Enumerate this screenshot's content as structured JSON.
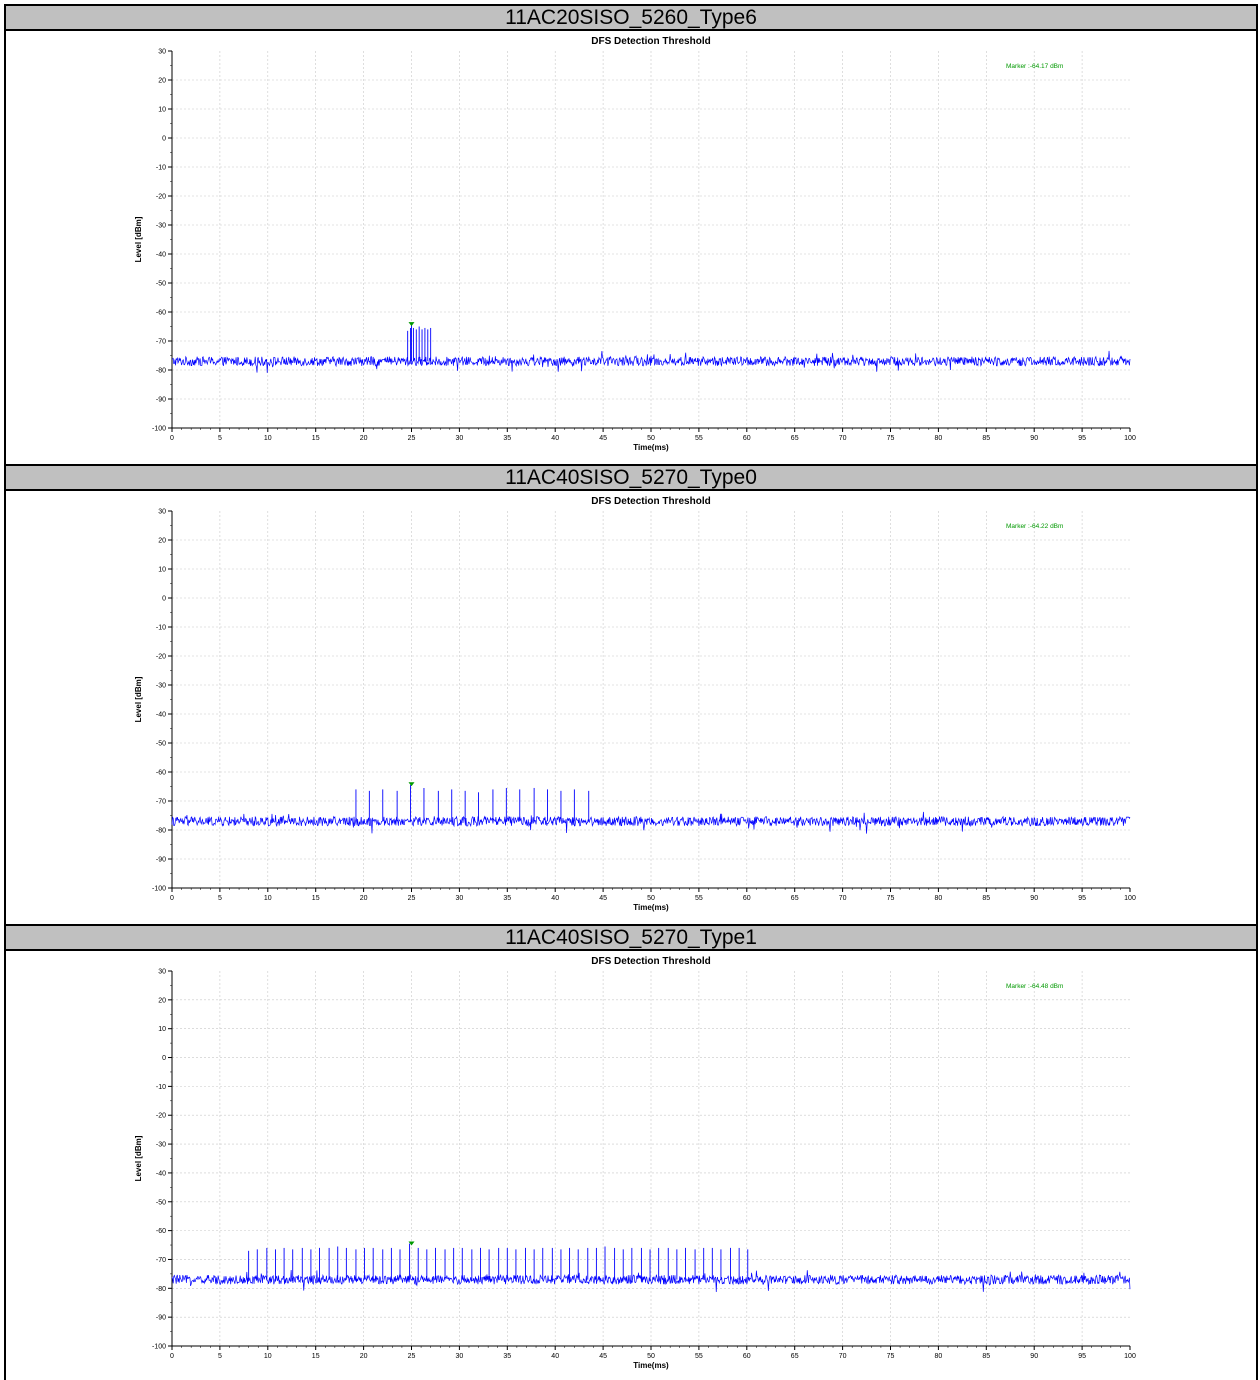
{
  "chart_data": [
    {
      "type": "line",
      "panel_title": "11AC20SISO_5260_Type6",
      "title": "DFS Detection Threshold",
      "xlabel": "Time(ms)",
      "ylabel": "Level [dBm]",
      "xlim": [
        0,
        100
      ],
      "ylim": [
        -100,
        30
      ],
      "xticks": [
        0,
        5,
        10,
        15,
        20,
        25,
        30,
        35,
        40,
        45,
        50,
        55,
        60,
        65,
        70,
        75,
        80,
        85,
        90,
        95,
        100
      ],
      "yticks": [
        30,
        20,
        10,
        0,
        -10,
        -20,
        -30,
        -40,
        -50,
        -60,
        -70,
        -80,
        -90,
        -100
      ],
      "grid": true,
      "series_color": "#0000ff",
      "marker_color": "#009900",
      "noise_floor_dbm": -77,
      "pulses": {
        "x": [
          24.6,
          24.9,
          25.0,
          25.2,
          25.5,
          25.8,
          26.1,
          26.4,
          26.7,
          27.0
        ],
        "y": [
          -66.5,
          -65.5,
          -64.5,
          -65.5,
          -66,
          -65,
          -66,
          -65.5,
          -66,
          -65.5
        ]
      },
      "marker": {
        "x": 25.0,
        "y": -64.17,
        "text": "Marker :-64.17 dBm"
      }
    },
    {
      "type": "line",
      "panel_title": "11AC40SISO_5270_Type0",
      "title": "DFS Detection Threshold",
      "xlabel": "Time(ms)",
      "ylabel": "Level [dBm]",
      "xlim": [
        0,
        100
      ],
      "ylim": [
        -100,
        30
      ],
      "xticks": [
        0,
        5,
        10,
        15,
        20,
        25,
        30,
        35,
        40,
        45,
        50,
        55,
        60,
        65,
        70,
        75,
        80,
        85,
        90,
        95,
        100
      ],
      "yticks": [
        30,
        20,
        10,
        0,
        -10,
        -20,
        -30,
        -40,
        -50,
        -60,
        -70,
        -80,
        -90,
        -100
      ],
      "grid": true,
      "series_color": "#0000ff",
      "marker_color": "#009900",
      "noise_floor_dbm": -77,
      "pulses": {
        "x": [
          19.2,
          20.6,
          22.0,
          23.5,
          24.9,
          26.3,
          27.8,
          29.2,
          30.6,
          32.0,
          33.5,
          34.9,
          36.3,
          37.8,
          39.2,
          40.6,
          42.0,
          43.5
        ],
        "y": [
          -66,
          -66.5,
          -66,
          -66.5,
          -64.5,
          -65.5,
          -66.5,
          -66,
          -66.5,
          -67,
          -66,
          -65.5,
          -66,
          -65.5,
          -66,
          -66.5,
          -66,
          -66.5
        ]
      },
      "marker": {
        "x": 25.0,
        "y": -64.22,
        "text": "Marker :-64.22 dBm"
      }
    },
    {
      "type": "line",
      "panel_title": "11AC40SISO_5270_Type1",
      "title": "DFS Detection Threshold",
      "xlabel": "Time(ms)",
      "ylabel": "Level [dBm]",
      "xlim": [
        0,
        100
      ],
      "ylim": [
        -100,
        30
      ],
      "xticks": [
        0,
        5,
        10,
        15,
        20,
        25,
        30,
        35,
        40,
        45,
        50,
        55,
        60,
        65,
        70,
        75,
        80,
        85,
        90,
        95,
        100
      ],
      "yticks": [
        30,
        20,
        10,
        0,
        -10,
        -20,
        -30,
        -40,
        -50,
        -60,
        -70,
        -80,
        -90,
        -100
      ],
      "grid": true,
      "series_color": "#0000ff",
      "marker_color": "#009900",
      "noise_floor_dbm": -77,
      "pulses": {
        "x": [
          8.0,
          8.9,
          9.9,
          10.8,
          11.7,
          12.6,
          13.6,
          14.5,
          15.4,
          16.4,
          17.3,
          18.2,
          19.2,
          20.1,
          21.0,
          22.0,
          22.9,
          23.8,
          24.8,
          25.7,
          26.6,
          27.5,
          28.5,
          29.4,
          30.3,
          31.3,
          32.2,
          33.1,
          34.1,
          35.0,
          35.9,
          36.9,
          37.8,
          38.7,
          39.7,
          40.6,
          41.5,
          42.4,
          43.4,
          44.3,
          45.2,
          46.2,
          47.1,
          48.0,
          49.0,
          49.9,
          50.8,
          51.8,
          52.7,
          53.6,
          54.6,
          55.5,
          56.4,
          57.3,
          58.3,
          59.2,
          60.1
        ],
        "y": [
          -67,
          -66.5,
          -66,
          -66.5,
          -66,
          -66.5,
          -66,
          -66.5,
          -66,
          -66,
          -65.5,
          -66,
          -66.5,
          -66,
          -66,
          -66.5,
          -66,
          -66.5,
          -64.5,
          -66,
          -66.5,
          -66,
          -66.5,
          -66,
          -66,
          -66.5,
          -66,
          -66.5,
          -66,
          -66,
          -66.5,
          -66,
          -66.5,
          -66,
          -66,
          -66.5,
          -66,
          -66.5,
          -66,
          -66,
          -65.5,
          -66,
          -66.5,
          -66,
          -66,
          -66.5,
          -66,
          -66,
          -66.5,
          -66,
          -66.5,
          -66,
          -66,
          -66.5,
          -66,
          -66,
          -66.5
        ]
      },
      "marker": {
        "x": 25.0,
        "y": -64.48,
        "text": "Marker :-64.48 dBm"
      }
    }
  ]
}
